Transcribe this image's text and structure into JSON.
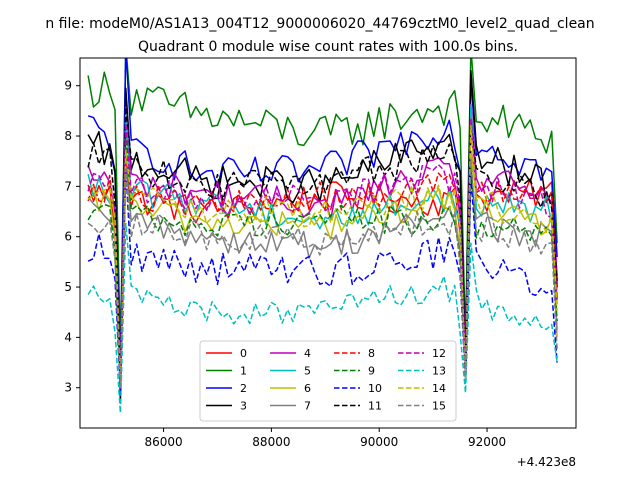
{
  "figure": {
    "suptitle": "n file: modeM0/AS1A13_004T12_9000006020_44769cztM0_level2_quad_clean",
    "title": "Quadrant 0 module wise count rates with 100.0s bins.",
    "x_offset_label": "+4.423e8"
  },
  "chart_data": {
    "type": "line",
    "title": "Quadrant 0 module wise count rates with 100.0s bins.",
    "xlabel": "",
    "ylabel": "",
    "x_offset": 442300000,
    "xlim": [
      84450,
      93650
    ],
    "ylim": [
      2.2,
      9.55
    ],
    "x_range_offset_units": [
      84600,
      93350
    ],
    "dip_x_offset_units": [
      85240,
      91640
    ],
    "x_ticks": [
      86000,
      88000,
      90000,
      92000
    ],
    "y_ticks": [
      3,
      4,
      5,
      6,
      7,
      8,
      9
    ],
    "grid": false,
    "legend": {
      "location": "lower center",
      "ncol": 4
    },
    "series": [
      {
        "name": "0",
        "color": "#ff0000",
        "dash": false,
        "base": [
          6.9,
          6.5,
          6.8,
          6.7,
          6.9
        ],
        "noise": 0.3,
        "dips": [
          3.0,
          3.3
        ]
      },
      {
        "name": "1",
        "color": "#008000",
        "dash": false,
        "base": [
          9.0,
          8.4,
          8.0,
          8.6,
          7.9
        ],
        "noise": 0.4,
        "dips": [
          3.8,
          4.0
        ]
      },
      {
        "name": "2",
        "color": "#0000ff",
        "dash": false,
        "base": [
          8.2,
          7.2,
          7.3,
          8.2,
          7.2
        ],
        "noise": 0.35,
        "dips": [
          3.4,
          3.6
        ]
      },
      {
        "name": "3",
        "color": "#000000",
        "dash": false,
        "base": [
          7.8,
          7.1,
          7.0,
          7.9,
          6.9
        ],
        "noise": 0.35,
        "dips": [
          2.7,
          3.5
        ]
      },
      {
        "name": "4",
        "color": "#bf00bf",
        "dash": false,
        "base": [
          7.2,
          6.9,
          6.6,
          7.3,
          6.8
        ],
        "noise": 0.3,
        "dips": [
          3.2,
          3.4
        ]
      },
      {
        "name": "5",
        "color": "#00bfbf",
        "dash": false,
        "base": [
          7.0,
          6.7,
          6.3,
          6.8,
          6.5
        ],
        "noise": 0.3,
        "dips": [
          3.1,
          3.3
        ]
      },
      {
        "name": "6",
        "color": "#bfbf00",
        "dash": false,
        "base": [
          6.7,
          6.3,
          6.2,
          6.7,
          6.1
        ],
        "noise": 0.3,
        "dips": [
          3.0,
          3.2
        ]
      },
      {
        "name": "7",
        "color": "#808080",
        "dash": false,
        "base": [
          6.5,
          6.0,
          5.8,
          6.4,
          5.9
        ],
        "noise": 0.3,
        "dips": [
          3.0,
          3.2
        ]
      },
      {
        "name": "8",
        "color": "#ff0000",
        "dash": true,
        "base": [
          7.0,
          6.6,
          6.8,
          7.0,
          6.8
        ],
        "noise": 0.3,
        "dips": [
          3.1,
          3.3
        ]
      },
      {
        "name": "9",
        "color": "#008000",
        "dash": true,
        "base": [
          6.6,
          6.2,
          6.4,
          6.3,
          6.0
        ],
        "noise": 0.3,
        "dips": [
          3.0,
          3.2
        ]
      },
      {
        "name": "10",
        "color": "#0000ff",
        "dash": true,
        "base": [
          5.8,
          5.4,
          5.3,
          5.7,
          5.0
        ],
        "noise": 0.35,
        "dips": [
          2.9,
          3.1
        ]
      },
      {
        "name": "11",
        "color": "#000000",
        "dash": true,
        "base": [
          7.6,
          7.0,
          7.1,
          7.6,
          6.7
        ],
        "noise": 0.3,
        "dips": [
          3.2,
          3.4
        ]
      },
      {
        "name": "12",
        "color": "#bf00bf",
        "dash": true,
        "base": [
          7.1,
          6.7,
          6.8,
          7.2,
          6.6
        ],
        "noise": 0.3,
        "dips": [
          3.1,
          3.3
        ]
      },
      {
        "name": "13",
        "color": "#00bfbf",
        "dash": true,
        "base": [
          5.0,
          4.5,
          4.5,
          5.0,
          4.0
        ],
        "noise": 0.25,
        "dips": [
          2.5,
          2.9
        ]
      },
      {
        "name": "14",
        "color": "#bfbf00",
        "dash": true,
        "base": [
          6.9,
          6.5,
          6.5,
          6.8,
          6.3
        ],
        "noise": 0.3,
        "dips": [
          3.0,
          3.2
        ]
      },
      {
        "name": "15",
        "color": "#808080",
        "dash": true,
        "base": [
          6.4,
          6.0,
          5.9,
          6.3,
          5.8
        ],
        "noise": 0.3,
        "dips": [
          3.0,
          3.2
        ]
      }
    ]
  }
}
